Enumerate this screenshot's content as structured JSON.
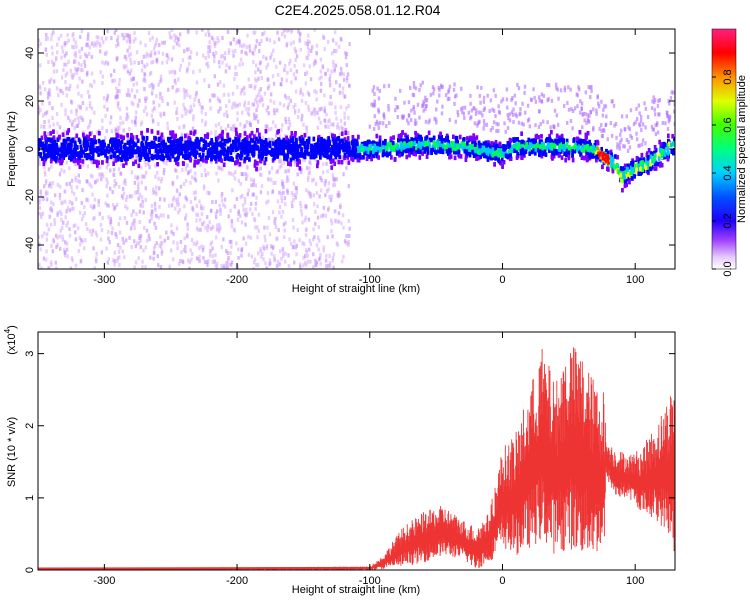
{
  "title": "C2E4.2025.058.01.12.R04",
  "chart_data": [
    {
      "type": "heatmap",
      "xlabel": "Height of straight line (km)",
      "ylabel": "Frequency (Hz)",
      "xlim": [
        -350,
        130
      ],
      "ylim": [
        -50,
        50
      ],
      "xticks": [
        -300,
        -200,
        -100,
        0,
        100
      ],
      "yticks": [
        -40,
        -20,
        0,
        20,
        40
      ],
      "colorbar": {
        "label": "Normalized spectral amplitude",
        "range": [
          0,
          1
        ],
        "ticks": [
          "0.0",
          "0.2",
          "0.4",
          "0.6",
          "0.8"
        ],
        "tick_values": [
          0,
          0.2,
          0.4,
          0.6,
          0.8
        ],
        "colors": [
          "#ffffff",
          "#d7a8ff",
          "#8000ff",
          "#0000ff",
          "#00c8ff",
          "#00ff40",
          "#ffff00",
          "#ff8000",
          "#ff0000",
          "#ff40a0"
        ]
      },
      "ridge": {
        "x": [
          -350,
          -120,
          -100,
          -60,
          -30,
          0,
          10,
          40,
          70,
          75,
          85,
          90,
          100,
          110,
          120,
          130
        ],
        "center_freq": [
          0,
          0,
          0,
          2,
          1,
          -2,
          1,
          1,
          0,
          -3,
          -6,
          -12,
          -8,
          -6,
          -2,
          2
        ]
      }
    },
    {
      "type": "area",
      "xlabel": "Height of straight line (km)",
      "ylabel": "SNR (10 * v/v)",
      "y_multiplier": "(x10",
      "y_multiplier_exp": "4",
      "y_multiplier_close": ")",
      "xlim": [
        -350,
        130
      ],
      "ylim": [
        0,
        3.3
      ],
      "xticks": [
        -300,
        -200,
        -100,
        0,
        100
      ],
      "yticks": [
        0,
        1,
        2,
        3
      ],
      "color": "#ee3333",
      "envelope": {
        "x": [
          -350,
          -100,
          -90,
          -75,
          -60,
          -45,
          -30,
          -20,
          -10,
          0,
          10,
          20,
          30,
          40,
          50,
          60,
          70,
          77,
          78,
          85,
          95,
          105,
          115,
          125,
          130
        ],
        "upper": [
          0.02,
          0.05,
          0.2,
          0.6,
          0.8,
          0.9,
          0.7,
          0.6,
          0.8,
          1.7,
          1.9,
          2.5,
          3.1,
          2.6,
          3.2,
          3.0,
          2.6,
          2.5,
          1.8,
          1.7,
          1.6,
          1.7,
          2.0,
          2.4,
          2.7
        ],
        "lower": [
          0.0,
          0.0,
          0.01,
          0.05,
          0.1,
          0.2,
          0.15,
          0.0,
          0.1,
          0.3,
          0.2,
          0.3,
          0.4,
          0.2,
          0.3,
          0.2,
          0.2,
          0.3,
          1.3,
          1.0,
          1.0,
          0.8,
          0.7,
          0.5,
          0.2
        ]
      }
    }
  ]
}
